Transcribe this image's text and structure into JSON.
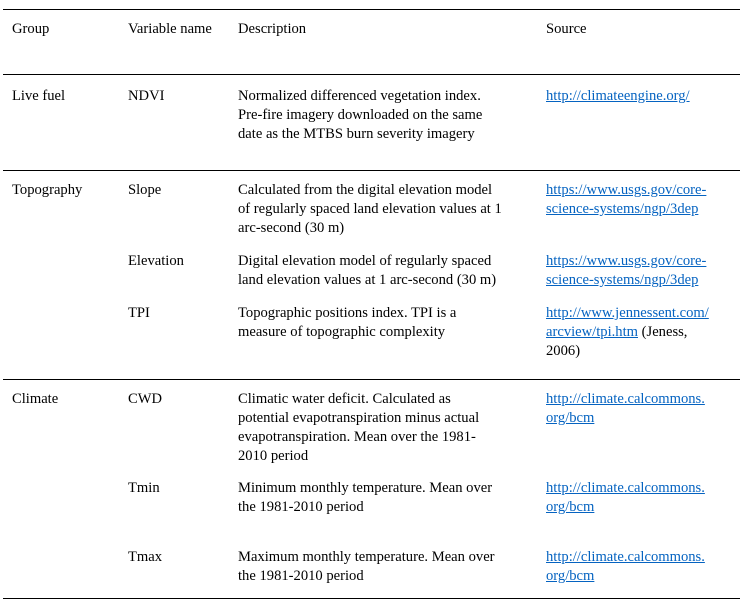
{
  "headers": [
    "Group",
    "Variable name",
    "Description",
    "Source"
  ],
  "rows": [
    {
      "group": "Live fuel",
      "variable": "NDVI",
      "desc": [
        "Normalized differenced vegetation index.",
        "Pre-fire imagery downloaded on the same",
        "date as the MTBS burn severity imagery"
      ],
      "source": [
        "http://climateengine.org/"
      ],
      "source_note": ""
    },
    {
      "group": "Topography",
      "variable": "Slope",
      "desc": [
        "Calculated from the digital elevation model",
        "of regularly spaced land elevation values at 1",
        "arc-second (30 m)"
      ],
      "source": [
        "https://www.usgs.gov/core-",
        "science-systems/ngp/3dep"
      ],
      "source_note": ""
    },
    {
      "group": "",
      "variable": "Elevation",
      "desc": [
        "Digital elevation model of regularly spaced",
        "land elevation values at 1 arc-second (30 m)"
      ],
      "source": [
        "https://www.usgs.gov/core-",
        "science-systems/ngp/3dep"
      ],
      "source_note": ""
    },
    {
      "group": "",
      "variable": "TPI",
      "desc": [
        "Topographic positions index. TPI is a",
        "measure of topographic complexity"
      ],
      "source": [
        "http://www.jennessent.com/",
        "arcview/tpi.htm"
      ],
      "source_note": " (Jeness,",
      "source_note2": "2006)"
    },
    {
      "group": "Climate",
      "variable": "CWD",
      "desc": [
        "Climatic water deficit. Calculated as",
        "potential evapotranspiration minus actual",
        "evapotranspiration. Mean over the 1981-",
        "2010 period"
      ],
      "source": [
        "http://climate.calcommons.",
        "org/bcm"
      ],
      "source_note": ""
    },
    {
      "group": "",
      "variable": "Tmin",
      "desc": [
        "Minimum monthly temperature. Mean over",
        "the 1981-2010 period"
      ],
      "source": [
        "http://climate.calcommons.",
        "org/bcm"
      ],
      "source_note": ""
    },
    {
      "group": "",
      "variable": "Tmax",
      "desc": [
        "Maximum monthly temperature. Mean over",
        "the 1981-2010 period"
      ],
      "source": [
        "http://climate.calcommons.",
        "org/bcm"
      ],
      "source_note": ""
    }
  ]
}
